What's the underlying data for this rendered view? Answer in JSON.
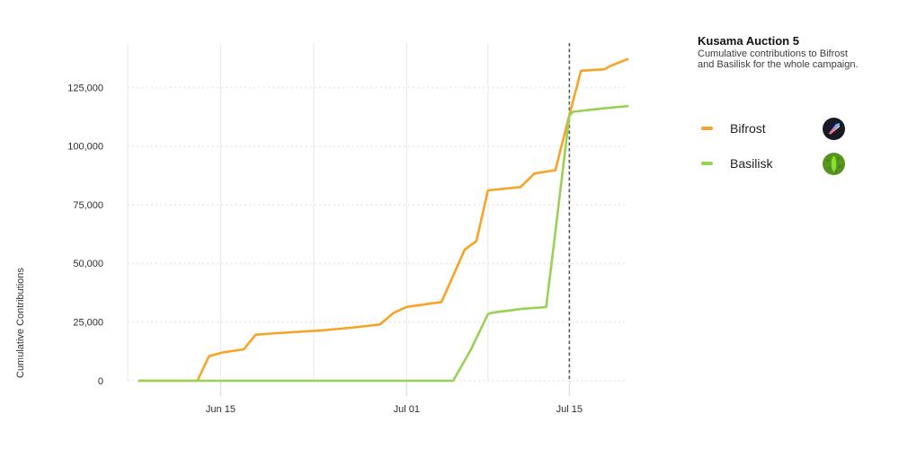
{
  "header": {
    "note": "title and subtitle live in chart_data to avoid duplication"
  },
  "legend": {
    "items": [
      {
        "label": "Bifrost",
        "icon": "bifrost-logo-icon",
        "color": "#F7A325"
      },
      {
        "label": "Basilisk",
        "icon": "basilisk-logo-icon",
        "color": "#97D155"
      }
    ]
  },
  "chart_data": {
    "type": "line",
    "title": "Kusama Auction 5",
    "subtitle": "Cumulative contributions to Bifrost and Basilisk for the whole campaign.",
    "ylabel": "Cumulative Contributions",
    "grid": "horizontal-dotted, vertical-solid",
    "legend_position": "right",
    "ylim": [
      0,
      144000
    ],
    "y_ticks": [
      0,
      25000,
      50000,
      75000,
      100000,
      125000
    ],
    "y_tick_labels": [
      "0",
      "25,000",
      "50,000",
      "75,000",
      "100,000",
      "125,000"
    ],
    "x_day0_date": "Jun 07",
    "x_domain_days": [
      0,
      43
    ],
    "x_gridline_days": [
      0,
      8,
      16,
      24,
      31,
      38
    ],
    "x_ticks": [
      {
        "label": "Jun 15",
        "day": 8
      },
      {
        "label": "Jul 01",
        "day": 24
      },
      {
        "label": "Jul 15",
        "day": 38
      }
    ],
    "annotation": {
      "type": "dashed-vertical-line",
      "day": 38,
      "date": "Jul 15",
      "color": "#5f5f5f"
    },
    "series": [
      {
        "name": "Bifrost",
        "color": "#F7A325",
        "points_day_value": [
          [
            1,
            0
          ],
          [
            6,
            0
          ],
          [
            7,
            10500
          ],
          [
            8.1,
            12000
          ],
          [
            10,
            13400
          ],
          [
            11,
            19600
          ],
          [
            12.8,
            20300
          ],
          [
            16.7,
            21500
          ],
          [
            19.2,
            22600
          ],
          [
            21.7,
            24000
          ],
          [
            22.9,
            29000
          ],
          [
            24,
            31500
          ],
          [
            27,
            33600
          ],
          [
            29,
            56000
          ],
          [
            30,
            59500
          ],
          [
            31,
            81200
          ],
          [
            33.8,
            82600
          ],
          [
            35,
            88400
          ],
          [
            36.8,
            89800
          ],
          [
            38,
            113300
          ],
          [
            39,
            132200
          ],
          [
            41,
            132800
          ],
          [
            41.5,
            134200
          ],
          [
            43,
            137200
          ]
        ]
      },
      {
        "name": "Basilisk",
        "color": "#97D155",
        "points_day_value": [
          [
            1,
            0
          ],
          [
            28,
            0
          ],
          [
            29.5,
            13000
          ],
          [
            31,
            28400
          ],
          [
            31.3,
            29000
          ],
          [
            34,
            30700
          ],
          [
            36,
            31400
          ],
          [
            36.5,
            51500
          ],
          [
            38,
            113000
          ],
          [
            38.3,
            114700
          ],
          [
            41,
            116200
          ],
          [
            43,
            117100
          ]
        ]
      }
    ]
  }
}
